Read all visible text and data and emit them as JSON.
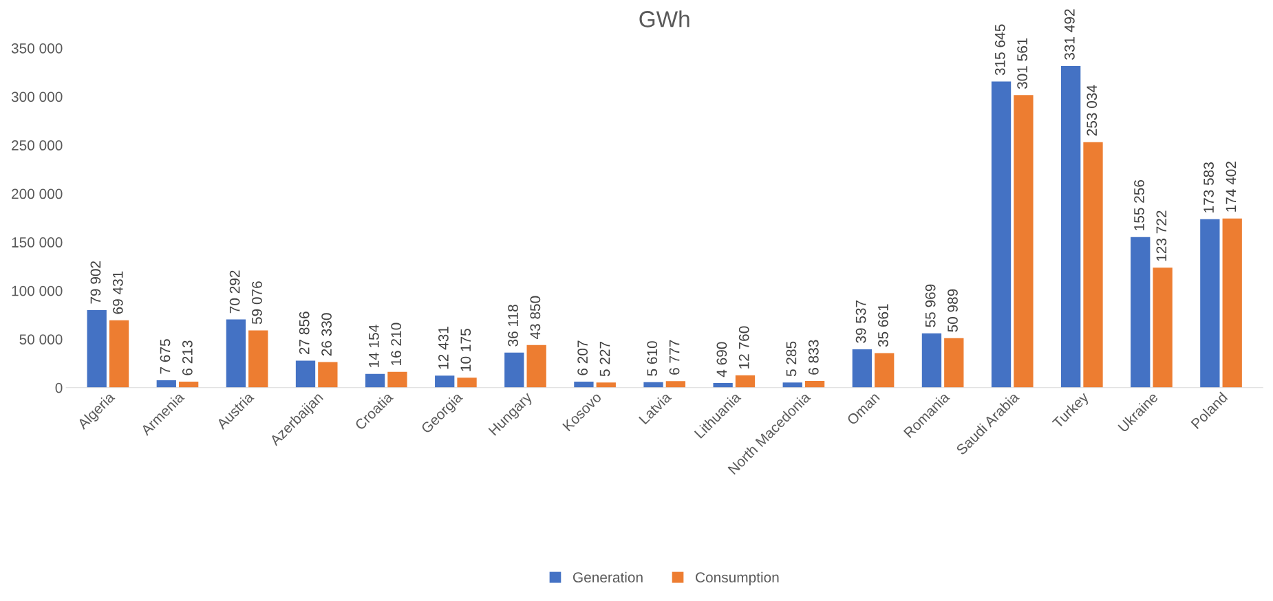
{
  "chart_data": {
    "type": "bar",
    "title": "GWh",
    "categories": [
      "Algeria",
      "Armenia",
      "Austria",
      "Azerbaijan",
      "Croatia",
      "Georgia",
      "Hungary",
      "Kosovo",
      "Latvia",
      "Lithuania",
      "North Macedonia",
      "Oman",
      "Romania",
      "Saudi Arabia",
      "Turkey",
      "Ukraine",
      "Poland"
    ],
    "series": [
      {
        "name": "Generation",
        "color": "#4472c4",
        "values": [
          79902,
          7675,
          70292,
          27856,
          14154,
          12431,
          36118,
          6207,
          5610,
          4690,
          5285,
          39537,
          55969,
          315645,
          331492,
          155256,
          173583
        ],
        "value_labels": [
          "79 902",
          "7 675",
          "70 292",
          "27 856",
          "14 154",
          "12 431",
          "36 118",
          "6 207",
          "5 610",
          "4 690",
          "5 285",
          "39 537",
          "55 969",
          "315 645",
          "331 492",
          "155 256",
          "173 583"
        ]
      },
      {
        "name": "Consumption",
        "color": "#ed7d31",
        "values": [
          69431,
          6213,
          59076,
          26330,
          16210,
          10175,
          43850,
          5227,
          6777,
          12760,
          6833,
          35661,
          50989,
          301561,
          253034,
          123722,
          174402
        ],
        "value_labels": [
          "69 431",
          "6 213",
          "59 076",
          "26 330",
          "16 210",
          "10 175",
          "43 850",
          "5 227",
          "6 777",
          "12 760",
          "6 833",
          "35 661",
          "50 989",
          "301 561",
          "253 034",
          "123 722",
          "174 402"
        ]
      }
    ],
    "ylim": [
      0,
      350000
    ],
    "yticks": [
      0,
      {
        "value": 50000,
        "label": "50 000"
      },
      {
        "value": 100000,
        "label": "100 000"
      },
      {
        "value": 150000,
        "label": "150 000"
      },
      {
        "value": 200000,
        "label": "200 000"
      },
      {
        "value": 250000,
        "label": "250 000"
      },
      {
        "value": 300000,
        "label": "300 000"
      },
      {
        "value": 350000,
        "label": "350 000"
      }
    ],
    "grid": false,
    "legend": "bottom"
  }
}
